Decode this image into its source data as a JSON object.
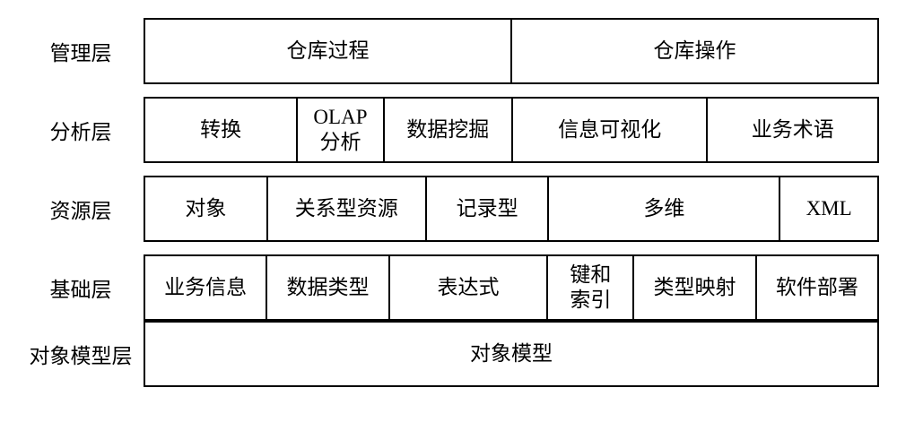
{
  "type": "layered-architecture-diagram",
  "background_color": "#ffffff",
  "border_color": "#000000",
  "text_color": "#000000",
  "font_family": "SimSun",
  "label_fontsize": 23,
  "cell_fontsize": 23,
  "row_gap": 14,
  "label_col_width": 140,
  "cells_total_width": 820,
  "rows": [
    {
      "label": "管理层",
      "cells": [
        {
          "text": "仓库过程",
          "flex": 1
        },
        {
          "text": "仓库操作",
          "flex": 1
        }
      ]
    },
    {
      "label": "分析层",
      "cells": [
        {
          "text": "转换",
          "flex": 1.25
        },
        {
          "text": "OLAP\n分析",
          "flex": 0.7
        },
        {
          "text": "数据挖掘",
          "flex": 1.05
        },
        {
          "text": "信息可视化",
          "flex": 1.6
        },
        {
          "text": "业务术语",
          "flex": 1.4
        }
      ]
    },
    {
      "label": "资源层",
      "cells": [
        {
          "text": "对象",
          "flex": 1.0
        },
        {
          "text": "关系型资源",
          "flex": 1.3
        },
        {
          "text": "记录型",
          "flex": 1.0
        },
        {
          "text": "多维",
          "flex": 1.9
        },
        {
          "text": "XML",
          "flex": 0.8
        }
      ]
    },
    {
      "label": "基础层",
      "cells": [
        {
          "text": "业务信息",
          "flex": 1.0
        },
        {
          "text": "数据类型",
          "flex": 1.0
        },
        {
          "text": "表达式",
          "flex": 1.3
        },
        {
          "text": "键和\n索引",
          "flex": 0.7
        },
        {
          "text": "类型映射",
          "flex": 1.0
        },
        {
          "text": "软件部署",
          "flex": 1.0
        }
      ]
    },
    {
      "label": "对象模型层",
      "cells": [
        {
          "text": "对象模型",
          "flex": 1
        }
      ]
    }
  ]
}
